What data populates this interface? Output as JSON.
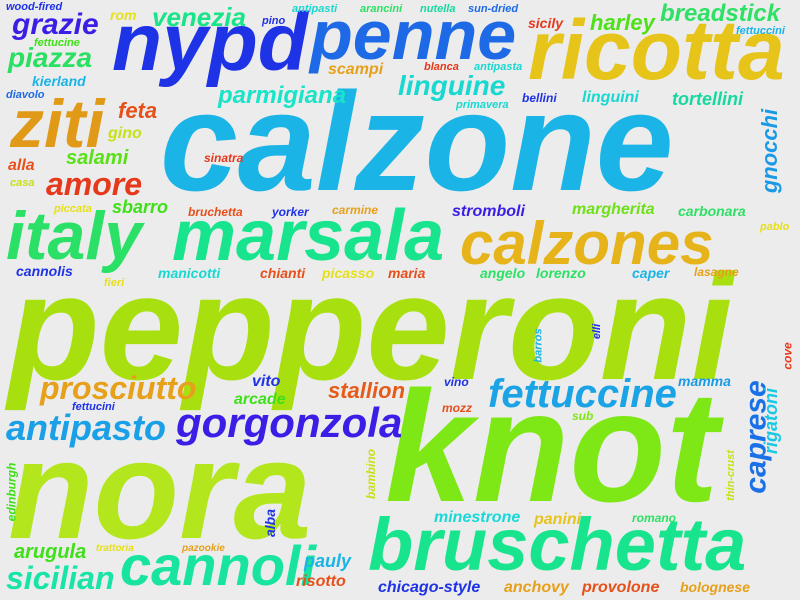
{
  "words": [
    {
      "text": "pepperoni",
      "color": "#a8e00f",
      "rotated": false
    },
    {
      "text": "calzone",
      "color": "#1ab4e6",
      "rotated": false
    },
    {
      "text": "knot",
      "color": "#7ee816",
      "rotated": false
    },
    {
      "text": "nora",
      "color": "#b4e61e",
      "rotated": false
    },
    {
      "text": "bruschetta",
      "color": "#18e48e",
      "rotated": false
    },
    {
      "text": "nypd",
      "color": "#1e32e6",
      "rotated": false
    },
    {
      "text": "penne",
      "color": "#1e6ae6",
      "rotated": false
    },
    {
      "text": "ricotta",
      "color": "#e6c41a",
      "rotated": false
    },
    {
      "text": "marsala",
      "color": "#18e48e",
      "rotated": false
    },
    {
      "text": "calzones",
      "color": "#e6b41a",
      "rotated": false
    },
    {
      "text": "italy",
      "color": "#2ae066",
      "rotated": false
    },
    {
      "text": "ziti",
      "color": "#e09a18",
      "rotated": false
    },
    {
      "text": "cannoli",
      "color": "#18e4a0",
      "rotated": false
    },
    {
      "text": "gorgonzola",
      "color": "#3a1ee6",
      "rotated": false
    },
    {
      "text": "fettuccine",
      "color": "#1aa4e6",
      "rotated": false
    },
    {
      "text": "antipasto",
      "color": "#1aa0e6",
      "rotated": false
    },
    {
      "text": "prosciutto",
      "color": "#e6a01a",
      "rotated": false
    },
    {
      "text": "sicilian",
      "color": "#18e4a8",
      "rotated": false
    },
    {
      "text": "amore",
      "color": "#e6381a",
      "rotated": false
    },
    {
      "text": "piazza",
      "color": "#2ae060",
      "rotated": false
    },
    {
      "text": "grazie",
      "color": "#3a1ee6",
      "rotated": false
    },
    {
      "text": "venezia",
      "color": "#18e488",
      "rotated": false
    },
    {
      "text": "breadstick",
      "color": "#2ee064",
      "rotated": false
    },
    {
      "text": "linguine",
      "color": "#18d8d0",
      "rotated": false
    },
    {
      "text": "parmigiana",
      "color": "#18e4c8",
      "rotated": false
    },
    {
      "text": "caprese",
      "color": "#1a70e6",
      "rotated": true
    },
    {
      "text": "gnocchi",
      "color": "#1a9ae6",
      "rotated": true
    },
    {
      "text": "rigatoni",
      "color": "#18c8e4",
      "rotated": true
    },
    {
      "text": "harley",
      "color": "#4ee018",
      "rotated": false
    },
    {
      "text": "tortellini",
      "color": "#18d8a0",
      "rotated": false
    },
    {
      "text": "feta",
      "color": "#e6501a",
      "rotated": false
    },
    {
      "text": "salami",
      "color": "#5ae018",
      "rotated": false
    },
    {
      "text": "stallion",
      "color": "#e65a1a",
      "rotated": false
    },
    {
      "text": "stromboli",
      "color": "#3a1ee6",
      "rotated": false
    },
    {
      "text": "margherita",
      "color": "#6ee018",
      "rotated": false
    },
    {
      "text": "carbonara",
      "color": "#2ee064",
      "rotated": false
    },
    {
      "text": "minestrone",
      "color": "#18d8d8",
      "rotated": false
    },
    {
      "text": "gino",
      "color": "#c8e018",
      "rotated": false
    },
    {
      "text": "sbarro",
      "color": "#3ee018",
      "rotated": false
    },
    {
      "text": "arugula",
      "color": "#3ee018",
      "rotated": false
    },
    {
      "text": "pauly",
      "color": "#1ab4e6",
      "rotated": false
    },
    {
      "text": "risotto",
      "color": "#e6501a",
      "rotated": false
    },
    {
      "text": "chicago-style",
      "color": "#1e32e6",
      "rotated": false
    },
    {
      "text": "anchovy",
      "color": "#e6a01a",
      "rotated": false
    },
    {
      "text": "provolone",
      "color": "#e6501a",
      "rotated": false
    },
    {
      "text": "bolognese",
      "color": "#e6a01a",
      "rotated": false
    },
    {
      "text": "mamma",
      "color": "#1a9ae6",
      "rotated": false
    },
    {
      "text": "vito",
      "color": "#1e32e6",
      "rotated": false
    },
    {
      "text": "arcade",
      "color": "#3ee018",
      "rotated": false
    },
    {
      "text": "panini",
      "color": "#e6c41a",
      "rotated": false
    },
    {
      "text": "romano",
      "color": "#2ee064",
      "rotated": false
    },
    {
      "text": "scampi",
      "color": "#e6a01a",
      "rotated": false
    },
    {
      "text": "linguini",
      "color": "#18d8d0",
      "rotated": false
    },
    {
      "text": "bellini",
      "color": "#1e32e6",
      "rotated": false
    },
    {
      "text": "alla",
      "color": "#e6501a",
      "rotated": false
    },
    {
      "text": "kierland",
      "color": "#1ab4e6",
      "rotated": false
    },
    {
      "text": "cannolis",
      "color": "#1e32e6",
      "rotated": false
    },
    {
      "text": "manicotti",
      "color": "#18d8d0",
      "rotated": false
    },
    {
      "text": "chianti",
      "color": "#e6501a",
      "rotated": false
    },
    {
      "text": "picasso",
      "color": "#e6e01a",
      "rotated": false
    },
    {
      "text": "maria",
      "color": "#e6501a",
      "rotated": false
    },
    {
      "text": "angelo",
      "color": "#2ee064",
      "rotated": false
    },
    {
      "text": "lorenzo",
      "color": "#2ee064",
      "rotated": false
    },
    {
      "text": "caper",
      "color": "#1ab4e6",
      "rotated": false
    },
    {
      "text": "lasagne",
      "color": "#e6a01a",
      "rotated": false
    },
    {
      "text": "rom",
      "color": "#e6e01a",
      "rotated": false
    },
    {
      "text": "carmine",
      "color": "#e6a01a",
      "rotated": false
    },
    {
      "text": "yorker",
      "color": "#1e32e6",
      "rotated": false
    },
    {
      "text": "bruchetta",
      "color": "#e6501a",
      "rotated": false
    },
    {
      "text": "sinatra",
      "color": "#e6381a",
      "rotated": false
    },
    {
      "text": "piccata",
      "color": "#e6e01a",
      "rotated": false
    },
    {
      "text": "casa",
      "color": "#c8e018",
      "rotated": false
    },
    {
      "text": "diavolo",
      "color": "#1e6ae6",
      "rotated": false
    },
    {
      "text": "fettucine",
      "color": "#3ee018",
      "rotated": false
    },
    {
      "text": "wood-fired",
      "color": "#1e32e6",
      "rotated": false
    },
    {
      "text": "pino",
      "color": "#1e32e6",
      "rotated": false
    },
    {
      "text": "antipasti",
      "color": "#18d8d0",
      "rotated": false
    },
    {
      "text": "arancini",
      "color": "#2ee064",
      "rotated": false
    },
    {
      "text": "nutella",
      "color": "#18d8a0",
      "rotated": false
    },
    {
      "text": "sun-dried",
      "color": "#1e6ae6",
      "rotated": false
    },
    {
      "text": "sicily",
      "color": "#e6381a",
      "rotated": false
    },
    {
      "text": "fettuccini",
      "color": "#1ab4e6",
      "rotated": false
    },
    {
      "text": "blanca",
      "color": "#e6381a",
      "rotated": false
    },
    {
      "text": "antipasta",
      "color": "#18d8d0",
      "rotated": false
    },
    {
      "text": "primavera",
      "color": "#18d8d0",
      "rotated": false
    },
    {
      "text": "pablo",
      "color": "#e6e01a",
      "rotated": false
    },
    {
      "text": "fieri",
      "color": "#e6e01a",
      "rotated": false
    },
    {
      "text": "cove",
      "color": "#e6381a",
      "rotated": true
    },
    {
      "text": "barros",
      "color": "#1ab4e6",
      "rotated": true
    },
    {
      "text": "elli",
      "color": "#1e32e6",
      "rotated": true
    },
    {
      "text": "vino",
      "color": "#1e32e6",
      "rotated": false
    },
    {
      "text": "mozz",
      "color": "#e6501a",
      "rotated": false
    },
    {
      "text": "sub",
      "color": "#7ee816",
      "rotated": false
    },
    {
      "text": "fettucini",
      "color": "#1e32e6",
      "rotated": false
    },
    {
      "text": "edinburgh",
      "color": "#3ee018",
      "rotated": true
    },
    {
      "text": "bambino",
      "color": "#c8e018",
      "rotated": true
    },
    {
      "text": "alba",
      "color": "#1e32e6",
      "rotated": true
    },
    {
      "text": "thin-crust",
      "color": "#c8e018",
      "rotated": true
    },
    {
      "text": "trattoria",
      "color": "#e6e01a",
      "rotated": false
    },
    {
      "text": "pazookie",
      "color": "#e6a01a",
      "rotated": false
    }
  ]
}
